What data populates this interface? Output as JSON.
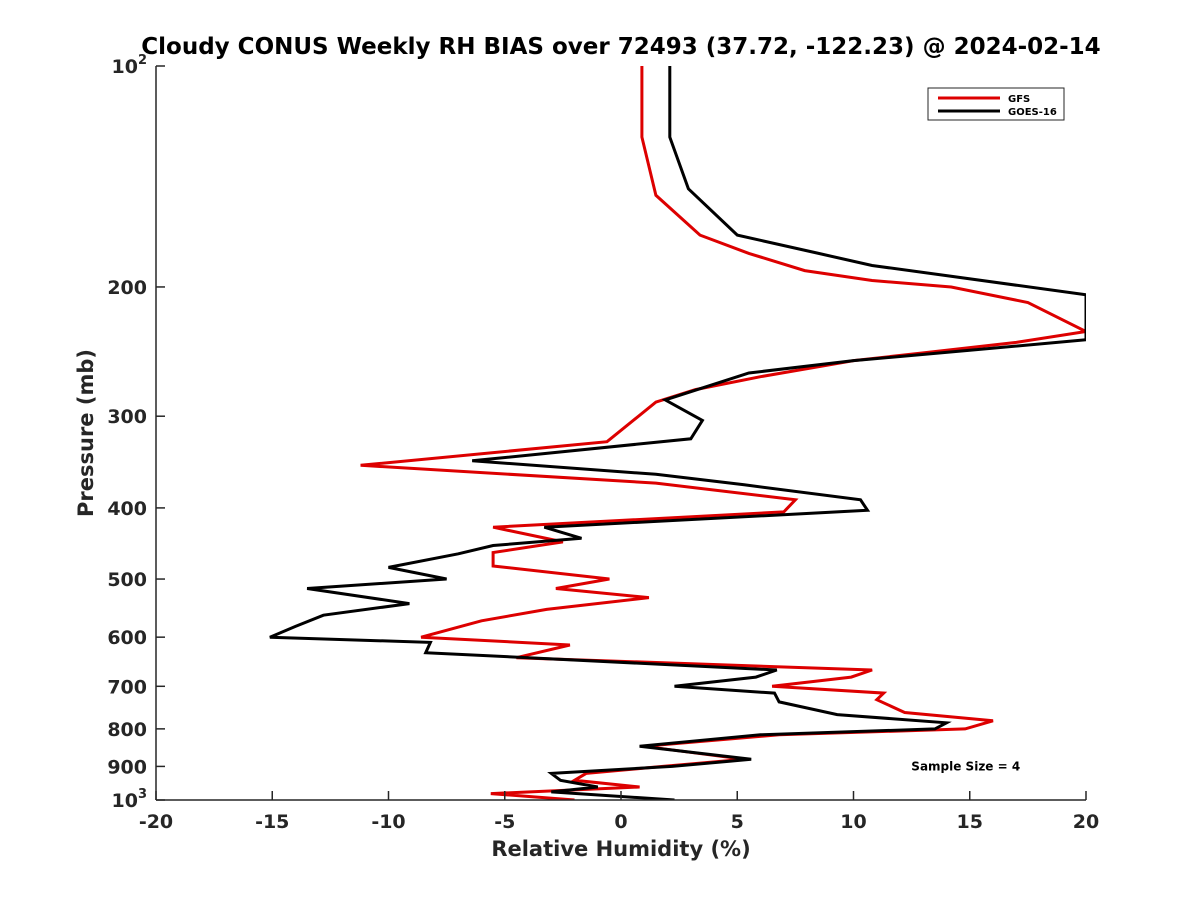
{
  "chart_data": {
    "type": "line",
    "title": "Cloudy CONUS Weekly RH BIAS over 72493 (37.72, -122.23) @ 2024-02-14",
    "xlabel": "Relative Humidity (%)",
    "ylabel": "Pressure (mb)",
    "xlim": [
      -20,
      20
    ],
    "ylim": [
      100,
      1000
    ],
    "yscale": "log",
    "y_reversed": true,
    "grid": false,
    "legend_position": "top-right",
    "x_ticks": [
      {
        "value": -20,
        "label": "-20"
      },
      {
        "value": -15,
        "label": "-15"
      },
      {
        "value": -10,
        "label": "-10"
      },
      {
        "value": -5,
        "label": "-5"
      },
      {
        "value": 0,
        "label": "0"
      },
      {
        "value": 5,
        "label": "5"
      },
      {
        "value": 10,
        "label": "10"
      },
      {
        "value": 15,
        "label": "15"
      },
      {
        "value": 20,
        "label": "20"
      }
    ],
    "y_ticks": [
      {
        "value": 100,
        "label": "10",
        "exponent": "2"
      },
      {
        "value": 200,
        "label": "200"
      },
      {
        "value": 300,
        "label": "300"
      },
      {
        "value": 400,
        "label": "400"
      },
      {
        "value": 500,
        "label": "500"
      },
      {
        "value": 600,
        "label": "600"
      },
      {
        "value": 700,
        "label": "700"
      },
      {
        "value": 800,
        "label": "800"
      },
      {
        "value": 900,
        "label": "900"
      },
      {
        "value": 1000,
        "label": "10",
        "exponent": "3"
      }
    ],
    "annotations": [
      {
        "text": "Sample Size = 4",
        "x": 15,
        "y": 900
      }
    ],
    "series": [
      {
        "name": "GFS",
        "color": "#dd0000",
        "points": [
          {
            "x": 0.9,
            "y": 100
          },
          {
            "x": 0.9,
            "y": 125
          },
          {
            "x": 1.5,
            "y": 150
          },
          {
            "x": 3.4,
            "y": 170
          },
          {
            "x": 5.5,
            "y": 180
          },
          {
            "x": 7.9,
            "y": 190
          },
          {
            "x": 10.8,
            "y": 196
          },
          {
            "x": 14.2,
            "y": 200
          },
          {
            "x": 17.5,
            "y": 210
          },
          {
            "x": 20.0,
            "y": 230
          },
          {
            "x": 17.0,
            "y": 238
          },
          {
            "x": 13.0,
            "y": 246
          },
          {
            "x": 10.0,
            "y": 252
          },
          {
            "x": 6.0,
            "y": 265
          },
          {
            "x": 3.2,
            "y": 276
          },
          {
            "x": 1.5,
            "y": 287
          },
          {
            "x": -0.6,
            "y": 325
          },
          {
            "x": -11.2,
            "y": 350
          },
          {
            "x": 1.5,
            "y": 370
          },
          {
            "x": 7.5,
            "y": 390
          },
          {
            "x": 7.0,
            "y": 405
          },
          {
            "x": -5.5,
            "y": 425
          },
          {
            "x": -2.5,
            "y": 445
          },
          {
            "x": -5.5,
            "y": 460
          },
          {
            "x": -5.5,
            "y": 480
          },
          {
            "x": -0.5,
            "y": 500
          },
          {
            "x": -2.8,
            "y": 515
          },
          {
            "x": 1.2,
            "y": 530
          },
          {
            "x": -3.2,
            "y": 550
          },
          {
            "x": -6.0,
            "y": 570
          },
          {
            "x": -8.6,
            "y": 600
          },
          {
            "x": -2.2,
            "y": 615
          },
          {
            "x": -4.5,
            "y": 640
          },
          {
            "x": 10.8,
            "y": 665
          },
          {
            "x": 9.9,
            "y": 680
          },
          {
            "x": 6.5,
            "y": 700
          },
          {
            "x": 11.3,
            "y": 715
          },
          {
            "x": 11.0,
            "y": 730
          },
          {
            "x": 12.2,
            "y": 760
          },
          {
            "x": 16.0,
            "y": 780
          },
          {
            "x": 14.8,
            "y": 800
          },
          {
            "x": 6.8,
            "y": 815
          },
          {
            "x": 1.0,
            "y": 845
          },
          {
            "x": 5.3,
            "y": 880
          },
          {
            "x": 1.8,
            "y": 900
          },
          {
            "x": -1.5,
            "y": 920
          },
          {
            "x": -2.0,
            "y": 940
          },
          {
            "x": 0.8,
            "y": 960
          },
          {
            "x": -5.6,
            "y": 980
          },
          {
            "x": -2.0,
            "y": 1000
          }
        ]
      },
      {
        "name": "GOES-16",
        "color": "#000000",
        "points": [
          {
            "x": 2.1,
            "y": 100
          },
          {
            "x": 2.1,
            "y": 125
          },
          {
            "x": 2.9,
            "y": 147
          },
          {
            "x": 5.0,
            "y": 170
          },
          {
            "x": 8.5,
            "y": 180
          },
          {
            "x": 10.8,
            "y": 187
          },
          {
            "x": 14.0,
            "y": 193
          },
          {
            "x": 20.0,
            "y": 205
          },
          {
            "x": 20.0,
            "y": 236
          },
          {
            "x": 15.0,
            "y": 244
          },
          {
            "x": 10.0,
            "y": 252
          },
          {
            "x": 5.5,
            "y": 262
          },
          {
            "x": 1.9,
            "y": 285
          },
          {
            "x": 3.5,
            "y": 304
          },
          {
            "x": 3.0,
            "y": 322
          },
          {
            "x": -6.4,
            "y": 345
          },
          {
            "x": 1.5,
            "y": 360
          },
          {
            "x": 5.3,
            "y": 372
          },
          {
            "x": 10.3,
            "y": 390
          },
          {
            "x": 10.6,
            "y": 403
          },
          {
            "x": -3.3,
            "y": 425
          },
          {
            "x": -1.7,
            "y": 440
          },
          {
            "x": -5.5,
            "y": 450
          },
          {
            "x": -7.0,
            "y": 462
          },
          {
            "x": -10.0,
            "y": 482
          },
          {
            "x": -7.5,
            "y": 500
          },
          {
            "x": -13.5,
            "y": 515
          },
          {
            "x": -9.1,
            "y": 540
          },
          {
            "x": -12.8,
            "y": 560
          },
          {
            "x": -14.0,
            "y": 580
          },
          {
            "x": -15.1,
            "y": 600
          },
          {
            "x": -8.2,
            "y": 610
          },
          {
            "x": -8.4,
            "y": 630
          },
          {
            "x": 6.7,
            "y": 665
          },
          {
            "x": 5.8,
            "y": 680
          },
          {
            "x": 2.3,
            "y": 700
          },
          {
            "x": 6.6,
            "y": 715
          },
          {
            "x": 6.8,
            "y": 735
          },
          {
            "x": 9.3,
            "y": 765
          },
          {
            "x": 14.0,
            "y": 785
          },
          {
            "x": 13.5,
            "y": 800
          },
          {
            "x": 6.0,
            "y": 815
          },
          {
            "x": 0.8,
            "y": 845
          },
          {
            "x": 5.6,
            "y": 880
          },
          {
            "x": 2.2,
            "y": 900
          },
          {
            "x": -3.0,
            "y": 920
          },
          {
            "x": -2.6,
            "y": 940
          },
          {
            "x": -1.0,
            "y": 960
          },
          {
            "x": -3.0,
            "y": 975
          },
          {
            "x": 2.3,
            "y": 1000
          }
        ]
      }
    ]
  }
}
